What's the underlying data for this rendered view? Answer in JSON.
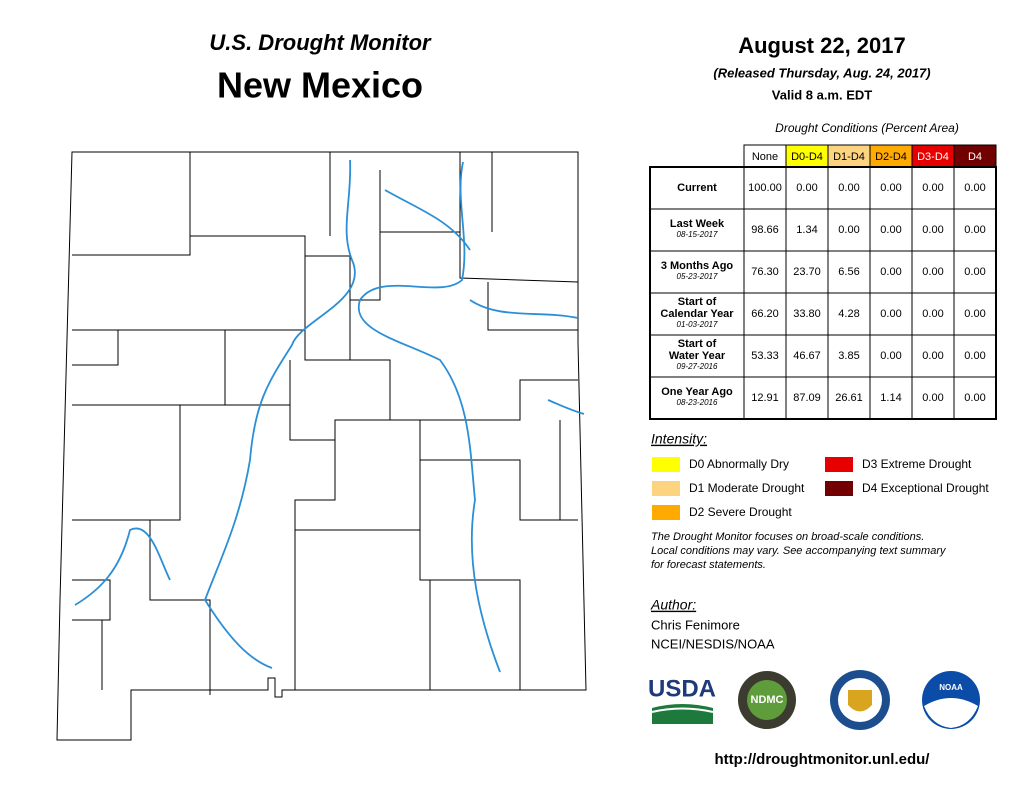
{
  "header": {
    "subtitle": "U.S. Drought Monitor",
    "title": "New Mexico"
  },
  "release": {
    "date": "August 22, 2017",
    "released": "(Released Thursday, Aug. 24, 2017)",
    "valid": "Valid 8 a.m. EDT"
  },
  "table": {
    "caption": "Drought Conditions (Percent Area)",
    "columns": [
      {
        "label": "None",
        "color": "#ffffff",
        "text_color": "#000000"
      },
      {
        "label": "D0-D4",
        "color": "#ffff00",
        "text_color": "#000000"
      },
      {
        "label": "D1-D4",
        "color": "#fcd37f",
        "text_color": "#000000"
      },
      {
        "label": "D2-D4",
        "color": "#ffaa00",
        "text_color": "#000000"
      },
      {
        "label": "D3-D4",
        "color": "#e60000",
        "text_color": "#ffffff"
      },
      {
        "label": "D4",
        "color": "#730000",
        "text_color": "#ffffff"
      }
    ],
    "rows": [
      {
        "label": [
          "Current"
        ],
        "values": [
          "100.00",
          "0.00",
          "0.00",
          "0.00",
          "0.00",
          "0.00"
        ]
      },
      {
        "label": [
          "Last Week"
        ],
        "date": "08-15-2017",
        "values": [
          "98.66",
          "1.34",
          "0.00",
          "0.00",
          "0.00",
          "0.00"
        ]
      },
      {
        "label": [
          "3 Months Ago"
        ],
        "date": "05-23-2017",
        "values": [
          "76.30",
          "23.70",
          "6.56",
          "0.00",
          "0.00",
          "0.00"
        ]
      },
      {
        "label": [
          "Start of",
          "Calendar Year"
        ],
        "date": "01-03-2017",
        "values": [
          "66.20",
          "33.80",
          "4.28",
          "0.00",
          "0.00",
          "0.00"
        ]
      },
      {
        "label": [
          "Start of",
          "Water Year"
        ],
        "date": "09-27-2016",
        "values": [
          "53.33",
          "46.67",
          "3.85",
          "0.00",
          "0.00",
          "0.00"
        ]
      },
      {
        "label": [
          "One Year Ago"
        ],
        "date": "08-23-2016",
        "values": [
          "12.91",
          "87.09",
          "26.61",
          "1.14",
          "0.00",
          "0.00"
        ]
      }
    ]
  },
  "legend": {
    "title": "Intensity:",
    "items": [
      {
        "label": "D0 Abnormally Dry",
        "color": "#ffff00"
      },
      {
        "label": "D1 Moderate Drought",
        "color": "#fcd37f"
      },
      {
        "label": "D2 Severe Drought",
        "color": "#ffaa00"
      },
      {
        "label": "D3 Extreme Drought",
        "color": "#e60000"
      },
      {
        "label": "D4 Exceptional Drought",
        "color": "#730000"
      }
    ]
  },
  "note": [
    "The Drought Monitor focuses on broad-scale conditions.",
    "Local conditions may vary. See accompanying text summary",
    "for forecast statements."
  ],
  "author": {
    "title": "Author:",
    "name": "Chris Fenimore",
    "org": "NCEI/NESDIS/NOAA"
  },
  "logos": [
    "USDA",
    "NDMC",
    "NOAA"
  ],
  "url": "http://droughtmonitor.unl.edu/"
}
